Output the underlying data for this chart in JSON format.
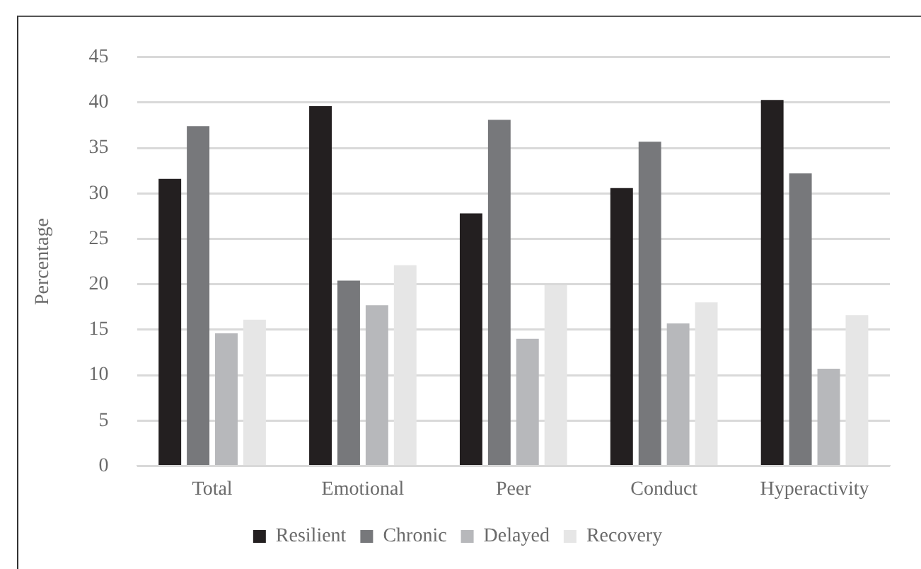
{
  "chart_data": {
    "type": "bar",
    "ylabel": "Percentage",
    "categories": [
      "Total",
      "Emotional",
      "Peer",
      "Conduct",
      "Hyperactivity"
    ],
    "series": [
      {
        "name": "Resilient",
        "color": "#231f20",
        "values": [
          31.6,
          39.6,
          27.8,
          30.6,
          40.3
        ]
      },
      {
        "name": "Chronic",
        "color": "#77787b",
        "values": [
          37.4,
          20.4,
          38.1,
          35.7,
          32.2
        ]
      },
      {
        "name": "Delayed",
        "color": "#b7b8bb",
        "values": [
          14.6,
          17.7,
          14.0,
          15.7,
          10.7
        ]
      },
      {
        "name": "Recovery",
        "color": "#e6e6e6",
        "values": [
          16.1,
          22.1,
          19.9,
          18.0,
          16.6
        ]
      }
    ],
    "ylim": [
      0,
      45
    ],
    "yticks": [
      0,
      5,
      10,
      15,
      20,
      25,
      30,
      35,
      40,
      45
    ],
    "grid": "y",
    "legend": "bottom"
  }
}
